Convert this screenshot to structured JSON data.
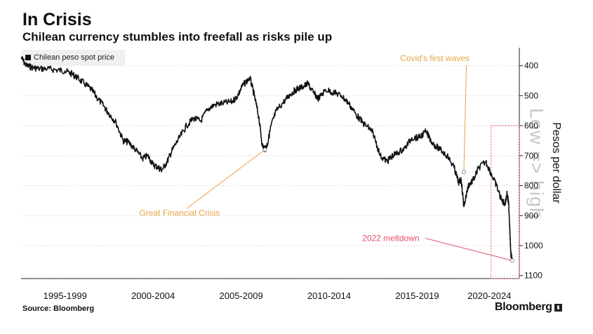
{
  "header": {
    "title": "In Crisis",
    "subtitle": "Chilean currency stumbles into freefall as risks pile up"
  },
  "legend": {
    "label": "Chilean peso spot price"
  },
  "watermark": "Low => high",
  "footer": {
    "source": "Source: Bloomberg",
    "brand": "Bloomberg",
    "brand_icon": "chart-icon"
  },
  "colors": {
    "line": "#111111",
    "annotation_orange": "#e8a247",
    "annotation_red": "#e0506a",
    "grid": "#c8c8c8"
  },
  "chart_data": {
    "type": "line",
    "series": [
      {
        "name": "Chilean peso spot price",
        "x": [
          1995.0,
          1995.3,
          1995.6,
          1996.0,
          1996.5,
          1997.0,
          1997.5,
          1997.9,
          1998.2,
          1998.6,
          1999.0,
          1999.3,
          1999.7,
          2000.0,
          2000.4,
          2000.8,
          2001.1,
          2001.5,
          2001.9,
          2002.2,
          2002.5,
          2002.8,
          2003.0,
          2003.3,
          2003.6,
          2004.0,
          2004.4,
          2004.8,
          2005.2,
          2005.6,
          2006.0,
          2006.5,
          2007.0,
          2007.3,
          2007.6,
          2008.0,
          2008.25,
          2008.5,
          2008.7,
          2008.85,
          2009.0,
          2009.2,
          2009.5,
          2010.0,
          2010.3,
          2010.6,
          2011.0,
          2011.3,
          2011.6,
          2011.9,
          2012.3,
          2012.8,
          2013.2,
          2013.6,
          2014.0,
          2014.4,
          2014.8,
          2015.0,
          2015.4,
          2015.8,
          2016.0,
          2016.4,
          2016.8,
          2017.2,
          2017.6,
          2018.0,
          2018.4,
          2018.8,
          2019.2,
          2019.6,
          2019.85,
          2020.0,
          2020.15,
          2020.4,
          2020.7,
          2021.0,
          2021.4,
          2021.7,
          2022.0,
          2022.3,
          2022.5,
          2022.6,
          2022.7,
          2022.75,
          2022.78,
          2022.82,
          2022.9
        ],
        "values": [
          372,
          400,
          405,
          410,
          410,
          414,
          417,
          428,
          440,
          460,
          480,
          505,
          535,
          560,
          590,
          650,
          655,
          680,
          710,
          700,
          730,
          740,
          748,
          720,
          680,
          640,
          600,
          575,
          585,
          545,
          530,
          525,
          520,
          500,
          465,
          440,
          500,
          570,
          665,
          680,
          660,
          600,
          550,
          515,
          495,
          480,
          470,
          460,
          490,
          510,
          480,
          490,
          500,
          525,
          560,
          590,
          610,
          625,
          700,
          720,
          705,
          690,
          675,
          640,
          640,
          620,
          660,
          680,
          700,
          740,
          790,
          780,
          870,
          800,
          780,
          740,
          720,
          760,
          800,
          850,
          860,
          825,
          865,
          930,
          980,
          1030,
          1050
        ]
      }
    ],
    "xlim": [
      1995.0,
      2023.3
    ],
    "ylim": [
      1110,
      340
    ],
    "y_inverted": true,
    "yticks": [
      400,
      500,
      600,
      700,
      800,
      900,
      1000,
      1100
    ],
    "xtick_labels": [
      {
        "label": "1995-1999",
        "at": 1997.5
      },
      {
        "label": "2000-2004",
        "at": 2002.5
      },
      {
        "label": "2005-2009",
        "at": 2007.5
      },
      {
        "label": "2010-2014",
        "at": 2012.5
      },
      {
        "label": "2015-2019",
        "at": 2017.5
      },
      {
        "label": "2020-2024",
        "at": 2021.6
      }
    ],
    "ylabel": "Pesos per dollar",
    "annotations": [
      {
        "text": "Great Financial Crisis",
        "point": [
          2008.85,
          680
        ],
        "label_at": [
          2004.0,
          900
        ],
        "color": "orange"
      },
      {
        "text": "Covid's first waves",
        "point": [
          2020.15,
          755
        ],
        "label_at": [
          2018.5,
          385
        ],
        "color": "orange"
      },
      {
        "text": "2022 meltdown",
        "point": [
          2022.9,
          1050
        ],
        "label_at": [
          2016.0,
          985
        ],
        "color": "red"
      }
    ],
    "highlight_range": {
      "x": [
        2021.7,
        2023.3
      ],
      "y": [
        600,
        1110
      ]
    }
  }
}
